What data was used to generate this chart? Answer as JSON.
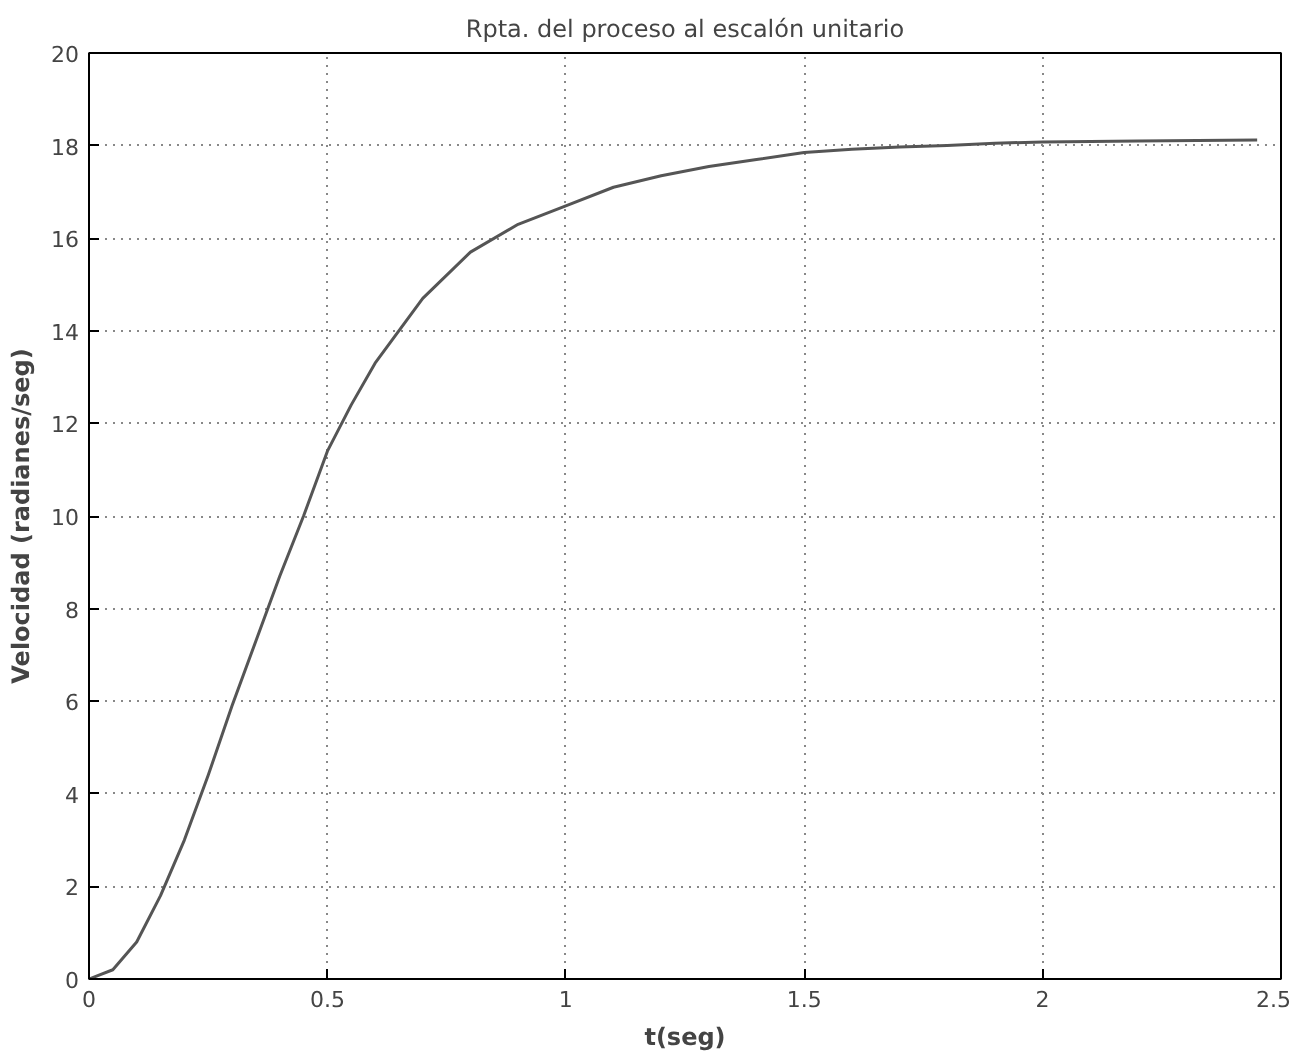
{
  "chart_data": {
    "type": "line",
    "title": "Rpta. del proceso al escalón unitario",
    "xlabel": "t(seg)",
    "ylabel": "Velocidad (radianes/seg)",
    "x": [
      0,
      0.05,
      0.1,
      0.15,
      0.2,
      0.25,
      0.3,
      0.35,
      0.4,
      0.45,
      0.5,
      0.55,
      0.6,
      0.7,
      0.8,
      0.9,
      1.0,
      1.1,
      1.2,
      1.3,
      1.4,
      1.5,
      1.6,
      1.7,
      1.8,
      1.9,
      2.0,
      2.2,
      2.45
    ],
    "series": [
      {
        "color": "#555555",
        "values": [
          0,
          0.2,
          0.8,
          1.8,
          3.0,
          4.4,
          5.9,
          7.3,
          8.7,
          10.0,
          11.4,
          12.4,
          13.3,
          14.7,
          15.7,
          16.3,
          16.7,
          17.1,
          17.35,
          17.55,
          17.7,
          17.85,
          17.92,
          17.97,
          18.0,
          18.05,
          18.08,
          18.1,
          18.12
        ]
      }
    ],
    "xlim": [
      0,
      2.5
    ],
    "ylim": [
      0,
      20
    ],
    "xticks": [
      0,
      0.5,
      1,
      1.5,
      2,
      2.5
    ],
    "yticks": [
      0,
      2,
      4,
      6,
      8,
      10,
      12,
      14,
      16,
      18,
      20
    ],
    "grid": true,
    "line_style": "solid",
    "marker": "none"
  }
}
